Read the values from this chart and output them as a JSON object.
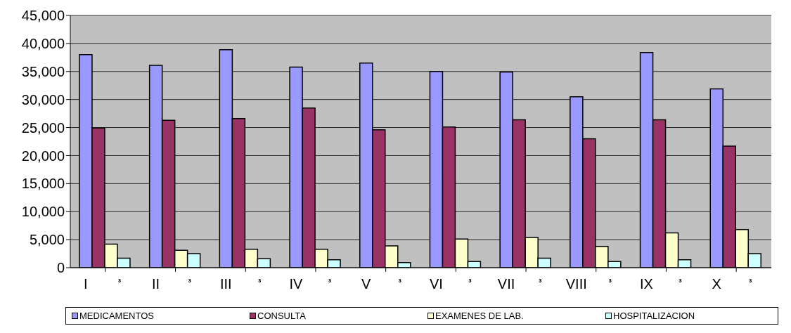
{
  "chart_data": {
    "type": "bar",
    "categories": [
      "I ³",
      "II ³",
      "III ³",
      "IV ³",
      "V ³",
      "VI ³",
      "VII ³",
      "VIII ³",
      "IX ³",
      "X ³"
    ],
    "series": [
      {
        "name": "MEDICAMENTOS",
        "color": "#9999ff",
        "values": [
          38000,
          36100,
          38900,
          35800,
          36500,
          35000,
          34900,
          30500,
          38400,
          31900
        ]
      },
      {
        "name": "CONSULTA",
        "color": "#993366",
        "values": [
          24900,
          26300,
          26600,
          28500,
          24600,
          25100,
          26400,
          23000,
          26400,
          21700
        ]
      },
      {
        "name": "EXAMENES DE LAB.",
        "color": "#ffffcc",
        "values": [
          4200,
          3100,
          3300,
          3300,
          3900,
          5100,
          5400,
          3800,
          6200,
          6800
        ]
      },
      {
        "name": "HOSPITALIZACION",
        "color": "#ccffff",
        "values": [
          1700,
          2500,
          1600,
          1400,
          900,
          1100,
          1700,
          1100,
          1400,
          2500
        ]
      }
    ],
    "ylim": [
      0,
      45000
    ],
    "yticks": [
      0,
      {
        "value": 5000,
        "label": "5,000"
      },
      {
        "value": 10000,
        "label": "10,000"
      },
      {
        "value": 15000,
        "label": "15,000"
      },
      {
        "value": 20000,
        "label": "20,000"
      },
      {
        "value": 25000,
        "label": "25,000"
      },
      {
        "value": 30000,
        "label": "30,000"
      },
      {
        "value": 35000,
        "label": "35,000"
      },
      {
        "value": 40000,
        "label": "40,000"
      },
      {
        "value": 45000,
        "label": "45,000"
      }
    ],
    "grid": "y",
    "legend": "bottom"
  }
}
